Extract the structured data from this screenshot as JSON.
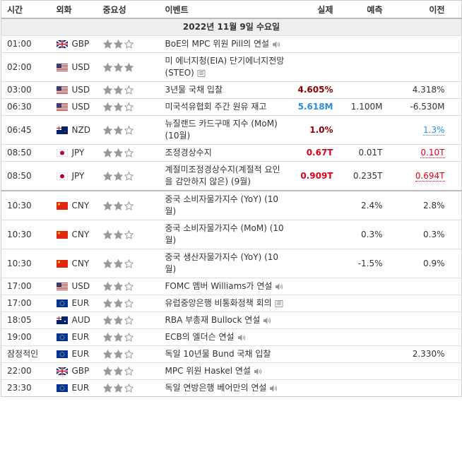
{
  "header": [
    "시간",
    "외화",
    "중요성",
    "이벤트",
    "실제",
    "예측",
    "이전"
  ],
  "date": "2022년 11월 9일 수요일",
  "rows": [
    {
      "time": "01:00",
      "currency": "GBP",
      "importance": 2,
      "event": "BoE의 MPC 위원 Pill의 연설",
      "icon": "speaker"
    },
    {
      "time": "02:00",
      "currency": "USD",
      "importance": 3,
      "event": "미 에너지청(EIA) 단기에너지전망(STEO)",
      "icon": "doc"
    },
    {
      "time": "03:00",
      "currency": "USD",
      "importance": 2,
      "event": "3년물 국채 입찰",
      "actual": "4.605%",
      "actual_color": "#8b0000",
      "previous": "4.318%"
    },
    {
      "time": "06:30",
      "currency": "USD",
      "importance": 2,
      "event": "미국석유협회 주간 원유 재고",
      "actual": "5.618M",
      "actual_color": "#2a8fd6",
      "forecast": "1.100M",
      "previous": "-6.530M"
    },
    {
      "time": "06:45",
      "currency": "NZD",
      "importance": 2,
      "event": "뉴질랜드 카드구매 지수 (MoM) (10월)",
      "actual": "1.0%",
      "actual_color": "#8b0000",
      "previous": "1.3%",
      "previous_color": "#2a8fd6"
    },
    {
      "time": "08:50",
      "currency": "JPY",
      "importance": 2,
      "event": "조정경상수지",
      "actual": "0.67T",
      "actual_color": "#e0001b",
      "forecast": "0.01T",
      "previous": "0.10T",
      "previous_color": "#e0001b"
    },
    {
      "time": "08:50",
      "currency": "JPY",
      "importance": 2,
      "event": "계절미조정경상수지(계절적 요인을 감안하지 않은) (9월)",
      "actual": "0.909T",
      "actual_color": "#e0001b",
      "forecast": "0.235T",
      "previous": "0.694T",
      "previous_color": "#e0001b"
    },
    {
      "time": "10:30",
      "currency": "CNY",
      "importance": 2,
      "event": "중국 소비자물가지수 (YoY) (10월)",
      "forecast": "2.4%",
      "previous": "2.8%"
    },
    {
      "time": "10:30",
      "currency": "CNY",
      "importance": 2,
      "event": "중국 소비자물가지수 (MoM) (10월)",
      "forecast": "0.3%",
      "previous": "0.3%"
    },
    {
      "time": "10:30",
      "currency": "CNY",
      "importance": 2,
      "event": "중국 생산자물가지수 (YoY) (10월)",
      "forecast": "-1.5%",
      "previous": "0.9%"
    },
    {
      "time": "17:00",
      "currency": "USD",
      "importance": 2,
      "event": "FOMC 멤버 Williams가 연설",
      "icon": "speaker"
    },
    {
      "time": "17:00",
      "currency": "EUR",
      "importance": 2,
      "event": "유럽중앙은행 비통화정책 회의",
      "icon": "doc"
    },
    {
      "time": "18:05",
      "currency": "AUD",
      "importance": 2,
      "event": "RBA 부총재 Bullock 연설",
      "icon": "speaker"
    },
    {
      "time": "19:00",
      "currency": "EUR",
      "importance": 2,
      "event": "ECB의 엘더슨 연설",
      "icon": "speaker"
    },
    {
      "time": "잠정적인",
      "currency": "EUR",
      "importance": 2,
      "event": "독일 10년물 Bund 국채 입찰",
      "previous": "2.330%"
    },
    {
      "time": "22:00",
      "currency": "GBP",
      "importance": 2,
      "event": "MPC 위원 Haskel 연설",
      "icon": "speaker"
    },
    {
      "time": "23:30",
      "currency": "EUR",
      "importance": 2,
      "event": "독일 연방은행 베어만의 연설",
      "icon": "speaker"
    }
  ]
}
